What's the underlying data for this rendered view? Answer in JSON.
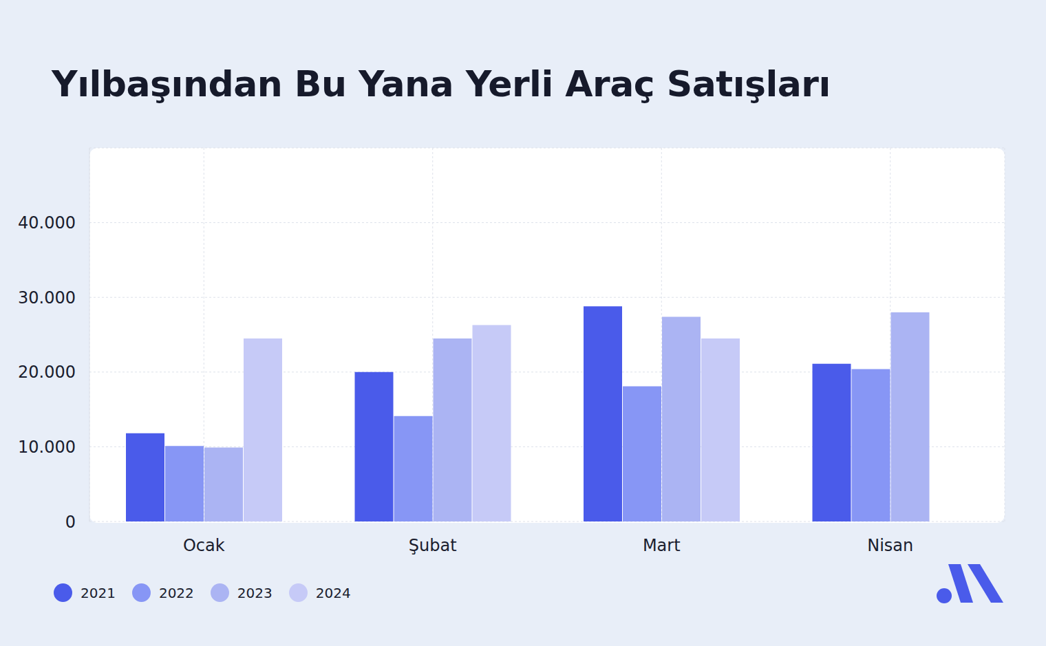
{
  "chart_data": {
    "type": "bar",
    "title": "Yılbaşından Bu Yana Yerli Araç Satışları",
    "categories": [
      "Ocak",
      "Şubat",
      "Mart",
      "Nisan"
    ],
    "series": [
      {
        "name": "2021",
        "color": "#4a5bea",
        "values": [
          11800,
          20000,
          28800,
          21100
        ]
      },
      {
        "name": "2022",
        "color": "#8796f5",
        "values": [
          10100,
          14100,
          18100,
          20400
        ]
      },
      {
        "name": "2023",
        "color": "#abb4f3",
        "values": [
          9900,
          24500,
          27400,
          28000
        ]
      },
      {
        "name": "2024",
        "color": "#c6caf7",
        "values": [
          24500,
          26300,
          24500,
          null
        ]
      }
    ],
    "ylim": [
      0,
      50000
    ],
    "yticks": [
      0,
      {
        "value": 10000,
        "label": "10.000"
      },
      {
        "value": 20000,
        "label": "20.000"
      },
      {
        "value": 30000,
        "label": "30.000"
      },
      {
        "value": 40000,
        "label": "40.000"
      }
    ],
    "grid": true,
    "legend": "bottom"
  }
}
